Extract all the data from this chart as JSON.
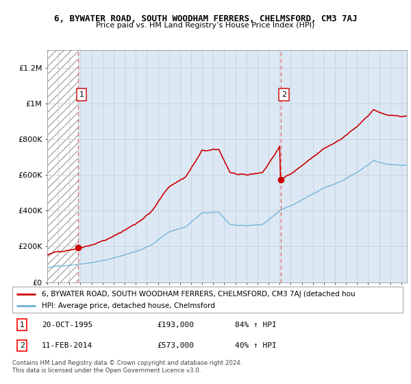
{
  "title": "6, BYWATER ROAD, SOUTH WOODHAM FERRERS, CHELMSFORD, CM3 7AJ",
  "subtitle": "Price paid vs. HM Land Registry’s House Price Index (HPI)",
  "sale1_t": 1995.792,
  "sale1_price": 193000,
  "sale2_t": 2014.083,
  "sale2_price": 573000,
  "legend_line1": "6, BYWATER ROAD, SOUTH WOODHAM FERRERS, CHELMSFORD, CM3 7AJ (detached hou",
  "legend_line2": "HPI: Average price, detached house, Chelmsford",
  "copyright": "Contains HM Land Registry data © Crown copyright and database right 2024.\nThis data is licensed under the Open Government Licence v3.0.",
  "ylim": [
    0,
    1300000
  ],
  "xlim_start": 1993.0,
  "xlim_end": 2025.5,
  "hpi_color": "#6aaed6",
  "price_color": "#cc0000",
  "dashed_color": "#e87070",
  "hatch_bg": "#e8e8e8",
  "plot_bg": "#dce9f5"
}
